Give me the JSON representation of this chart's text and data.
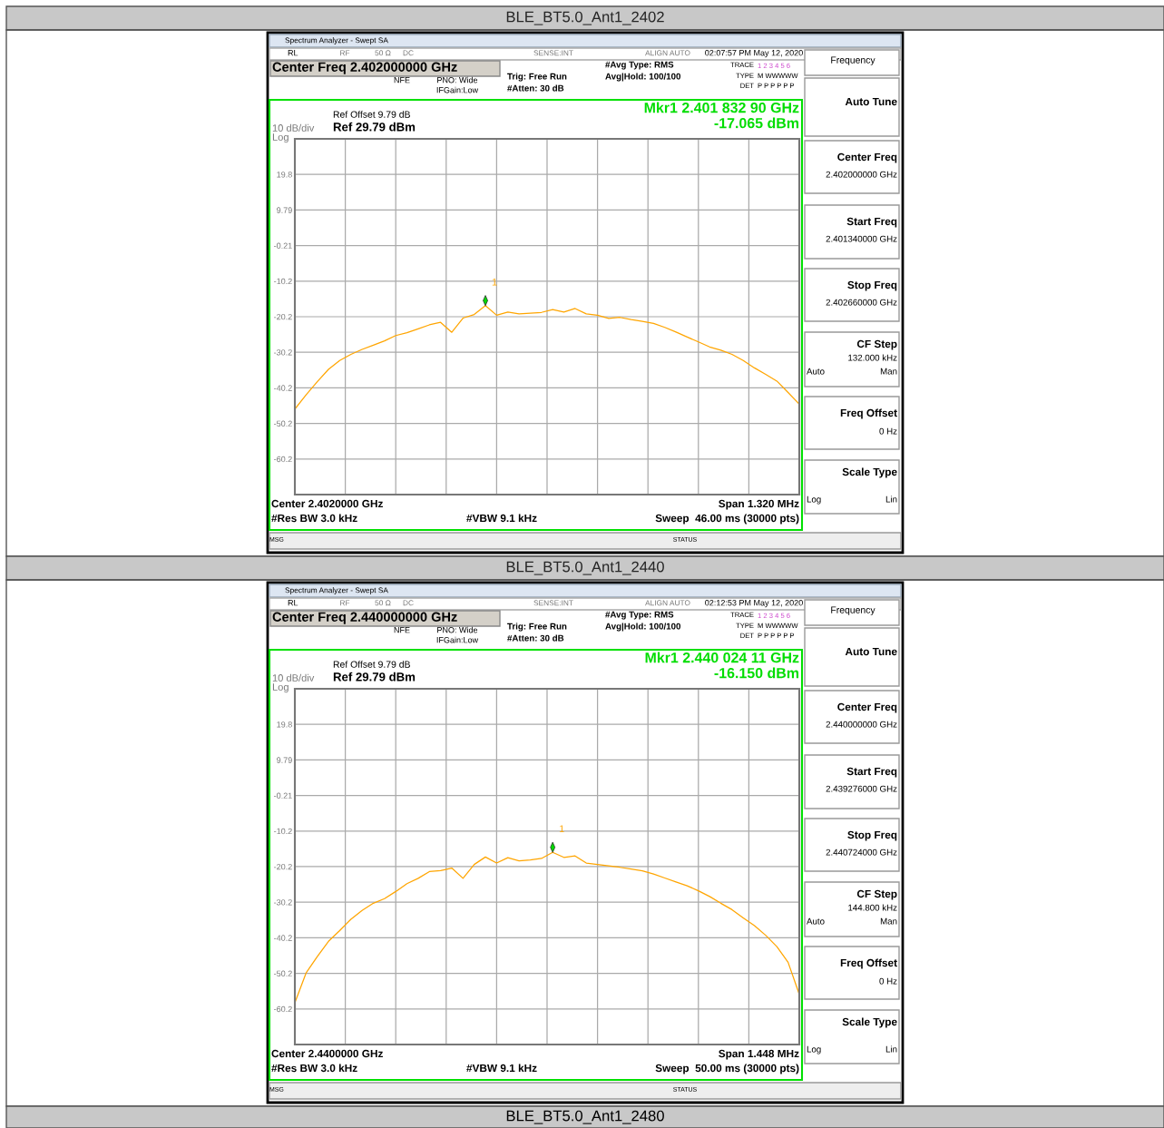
{
  "chart_data": [
    {
      "type": "line",
      "title": "BLE_BT5.0_Ant1_2402",
      "categories": [
        null,
        null,
        null,
        null,
        null,
        null,
        null,
        null,
        null,
        null,
        null,
        null,
        null,
        null,
        null,
        null,
        null,
        null,
        null,
        null,
        null,
        null,
        null,
        null,
        null,
        null,
        null,
        null,
        null,
        null,
        null,
        null,
        null,
        null,
        null,
        null,
        null,
        null,
        null,
        null,
        null,
        null,
        null,
        null,
        null,
        null
      ],
      "ylim": [
        -70.21,
        29.79
      ],
      "yticks": [
        {
          "value": 29.79,
          "label": null
        },
        {
          "value": 19.79,
          "label": "19.8"
        },
        {
          "value": 9.79,
          "label": "9.79"
        },
        {
          "value": -0.21,
          "label": "-0.21"
        },
        {
          "value": -10.21,
          "label": "-10.2"
        },
        {
          "value": -20.21,
          "label": "-20.2"
        },
        {
          "value": -30.21,
          "label": "-30.2"
        },
        {
          "value": -40.21,
          "label": "-40.2"
        },
        {
          "value": -50.21,
          "label": "-50.2"
        },
        {
          "value": -60.21,
          "label": "-60.2"
        },
        {
          "value": -70.21,
          "label": null
        }
      ],
      "tick_labels": "y",
      "grid": true,
      "series": [
        {
          "color": "#ffa500",
          "values": [
            -46.2,
            -42.2,
            -38.5,
            -35.0,
            -32.5,
            -30.8,
            -29.4,
            -28.2,
            -27.0,
            -25.5,
            -24.7,
            -23.6,
            -22.5,
            -21.8,
            -24.6,
            -20.6,
            -19.6,
            -17.1,
            -19.8,
            -18.9,
            -19.4,
            -19.2,
            -19.0,
            -18.2,
            -18.9,
            -17.9,
            -19.4,
            -19.8,
            -20.7,
            -20.4,
            -21.0,
            -21.5,
            -22.1,
            -23.2,
            -24.5,
            -25.9,
            -27.3,
            -28.7,
            -29.6,
            -30.8,
            -32.5,
            -34.6,
            -36.4,
            -38.3,
            -41.5,
            -44.8
          ]
        }
      ],
      "annotations": [
        "Spectrum Analyzer - Swept SA",
        "RL",
        "RF",
        "50 Ω",
        "DC",
        "SENSE:INT",
        "ALIGN AUTO",
        "02:07:57 PM May 12, 2020",
        "Center Freq 2.402000000 GHz",
        "NFE",
        "PNO: Wide",
        "IFGain:Low",
        "Trig: Free Run",
        "#Atten: 30 dB",
        "#Avg Type: RMS",
        "Avg|Hold: 100/100",
        "TRACE",
        "1 2 3 4 5 6",
        "TYPE",
        "M WWWWW",
        "DET",
        "P P P P P P",
        "Ref Offset 9.79 dB",
        "Ref 29.79 dBm",
        "10 dB/div",
        "Log",
        "Mkr1 2.401 832 90 GHz",
        "-17.065 dBm",
        "Center 2.4020000 GHz",
        "Span 1.320 MHz",
        "#Res BW 3.0 kHz",
        "#VBW 9.1 kHz",
        "Sweep  46.00 ms (30000 pts)",
        "MSG",
        "STATUS",
        "Frequency",
        "Auto Tune",
        "Center Freq",
        "2.402000000 GHz",
        "Start Freq",
        "2.401340000 GHz",
        "Stop Freq",
        "2.402660000 GHz",
        "CF Step",
        "132.000 kHz",
        "Auto",
        "Man",
        "Freq Offset",
        "0 Hz",
        "Scale Type",
        "Log",
        "Lin",
        "1"
      ]
    },
    {
      "type": "line",
      "title": "BLE_BT5.0_Ant1_2440",
      "categories": [
        null,
        null,
        null,
        null,
        null,
        null,
        null,
        null,
        null,
        null,
        null,
        null,
        null,
        null,
        null,
        null,
        null,
        null,
        null,
        null,
        null,
        null,
        null,
        null,
        null,
        null,
        null,
        null,
        null,
        null,
        null,
        null,
        null,
        null,
        null,
        null,
        null,
        null,
        null,
        null,
        null,
        null,
        null,
        null,
        null,
        null
      ],
      "ylim": [
        -70.21,
        29.79
      ],
      "yticks": [
        {
          "value": 29.79,
          "label": null
        },
        {
          "value": 19.79,
          "label": "19.8"
        },
        {
          "value": 9.79,
          "label": "9.79"
        },
        {
          "value": -0.21,
          "label": "-0.21"
        },
        {
          "value": -10.21,
          "label": "-10.2"
        },
        {
          "value": -20.21,
          "label": "-20.2"
        },
        {
          "value": -30.21,
          "label": "-30.2"
        },
        {
          "value": -40.21,
          "label": "-40.2"
        },
        {
          "value": -50.21,
          "label": "-50.2"
        },
        {
          "value": -60.21,
          "label": "-60.2"
        },
        {
          "value": -70.21,
          "label": null
        }
      ],
      "tick_labels": "y",
      "grid": true,
      "series": [
        {
          "color": "#ffa500",
          "values": [
            -58.5,
            -50.1,
            -45.5,
            -41.2,
            -38.2,
            -35.0,
            -32.5,
            -30.5,
            -29.2,
            -27.2,
            -25.0,
            -23.5,
            -21.6,
            -21.3,
            -20.6,
            -23.5,
            -19.6,
            -17.5,
            -19.2,
            -17.7,
            -18.6,
            -18.3,
            -17.9,
            -16.2,
            -17.6,
            -17.2,
            -19.2,
            -19.6,
            -20.0,
            -20.4,
            -20.9,
            -21.4,
            -22.3,
            -23.4,
            -24.5,
            -25.6,
            -27.0,
            -28.6,
            -30.5,
            -32.3,
            -34.6,
            -36.8,
            -39.5,
            -42.7,
            -47.1,
            -56.1
          ]
        }
      ],
      "annotations": [
        "Spectrum Analyzer - Swept SA",
        "RL",
        "RF",
        "50 Ω",
        "DC",
        "SENSE:INT",
        "ALIGN AUTO",
        "02:12:53 PM May 12, 2020",
        "Center Freq 2.440000000 GHz",
        "NFE",
        "PNO: Wide",
        "IFGain:Low",
        "Trig: Free Run",
        "#Atten: 30 dB",
        "#Avg Type: RMS",
        "Avg|Hold: 100/100",
        "TRACE",
        "1 2 3 4 5 6",
        "TYPE",
        "M WWWWW",
        "DET",
        "P P P P P P",
        "Ref Offset 9.79 dB",
        "Ref 29.79 dBm",
        "10 dB/div",
        "Log",
        "Mkr1 2.440 024 11 GHz",
        "-16.150 dBm",
        "Center 2.4400000 GHz",
        "Span 1.448 MHz",
        "#Res BW 3.0 kHz",
        "#VBW 9.1 kHz",
        "Sweep  50.00 ms (30000 pts)",
        "MSG",
        "STATUS",
        "Frequency",
        "Auto Tune",
        "Center Freq",
        "2.440000000 GHz",
        "Start Freq",
        "2.439276000 GHz",
        "Stop Freq",
        "2.440724000 GHz",
        "CF Step",
        "144.800 kHz",
        "Auto",
        "Man",
        "Freq Offset",
        "0 Hz",
        "Scale Type",
        "Log",
        "Lin",
        "1",
        "BLE_BT5.0_Ant1_2480"
      ]
    }
  ]
}
